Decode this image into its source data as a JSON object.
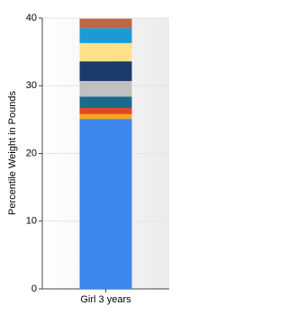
{
  "chart_data": {
    "type": "stacked-bar",
    "y_label": "Percentile Weight in Pounds",
    "categories": [
      "Girl 3 years"
    ],
    "series": [
      {
        "color": "#3d87ee",
        "values": [
          25.1
        ]
      },
      {
        "color": "#f5a623",
        "values": [
          0.7
        ]
      },
      {
        "color": "#e0481e",
        "values": [
          0.9
        ]
      },
      {
        "color": "#1a6a8c",
        "values": [
          1.7
        ]
      },
      {
        "color": "#c0c0c0",
        "values": [
          2.3
        ]
      },
      {
        "color": "#1b3a6b",
        "values": [
          2.9
        ]
      },
      {
        "color": "#fde08a",
        "values": [
          2.7
        ]
      },
      {
        "color": "#1c9ad6",
        "values": [
          2.2
        ]
      },
      {
        "color": "#c0654a",
        "values": [
          1.4
        ]
      }
    ],
    "ylim": [
      0,
      40
    ],
    "yticks": [
      0,
      10,
      20,
      30,
      40
    ],
    "grid": true
  }
}
